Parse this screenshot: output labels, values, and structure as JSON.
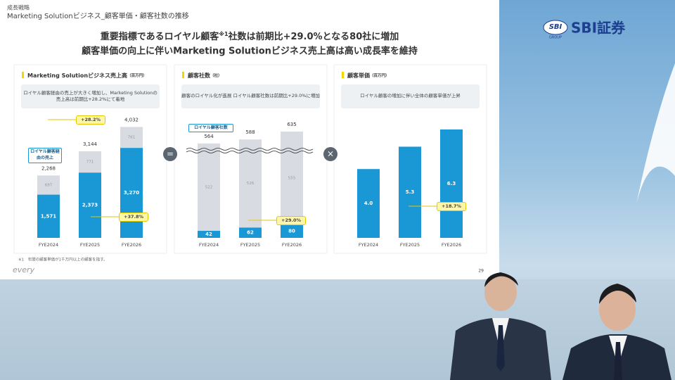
{
  "slide": {
    "section": "成長戦略",
    "subtitle": "Marketing Solutionビジネス_顧客単価・顧客社数の推移",
    "headline": [
      "重要指標であるロイヤル顧客",
      "※1",
      "社数は前期比+29.0%となる80社に増加"
    ],
    "headline2": "顧客単価の向上に伴いMarketing Solutionビジネス売上高は高い成長率を維持",
    "operators": [
      "=",
      "×"
    ],
    "footnote": "※1　年間の顧客単価が1千万円以上の顧客を指す。",
    "page": "29",
    "brand": "every"
  },
  "logo": {
    "mark": "SBI",
    "group": "GROUP",
    "name": "SBI証券"
  },
  "chart_data": [
    {
      "type": "bar",
      "title": "Marketing Solutionビジネス売上高",
      "unit": "（百万円）",
      "note": "ロイヤル顧客経由の売上が大きく増加し、Marketing Solutionの売上高は前期比+28.2%にて着地",
      "categories": [
        "FYE2024",
        "FYE2025",
        "FYE2026"
      ],
      "ylim": [
        0,
        4500
      ],
      "stacked": true,
      "series": [
        {
          "name": "ロイヤル顧客経由の売上",
          "color": "#1a98d5",
          "values": [
            1571,
            2373,
            3270
          ],
          "value_labels": [
            "1,571",
            "2,373",
            "3,270"
          ]
        },
        {
          "color": "#d8dce2",
          "values": [
            697,
            771,
            761
          ]
        }
      ],
      "totals": [
        2268,
        3144,
        4032
      ],
      "total_labels": [
        "2,268",
        "3,144",
        "4,032"
      ],
      "annotations": [
        "+28.2%",
        "+37.8%"
      ]
    },
    {
      "type": "bar",
      "title": "顧客社数",
      "unit": "（社）",
      "note": "顧客のロイヤル化が進展 ロイヤル顧客社数は前期比+29.0%に増加",
      "categories": [
        "FYE2024",
        "FYE2025",
        "FYE2026"
      ],
      "ylim": [
        0,
        740
      ],
      "stacked": true,
      "axis_break": true,
      "series": [
        {
          "name": "ロイヤル顧客社数",
          "color": "#1a98d5",
          "values": [
            42,
            62,
            80
          ]
        },
        {
          "color": "#d8dce2",
          "values": [
            522,
            526,
            555
          ]
        }
      ],
      "totals": [
        564,
        588,
        635
      ],
      "annotations": [
        "+29.0%"
      ]
    },
    {
      "type": "bar",
      "title": "顧客単価",
      "unit": "（百万円）",
      "note": "ロイヤル顧客の増加に伴い全体の顧客単価が上昇",
      "categories": [
        "FYE2024",
        "FYE2025",
        "FYE2026"
      ],
      "ylim": [
        0,
        7.2
      ],
      "series": [
        {
          "color": "#1a98d5",
          "values": [
            4.0,
            5.3,
            6.3
          ],
          "value_labels": [
            "4.0",
            "5.3",
            "6.3"
          ]
        }
      ],
      "annotations": [
        "+18.7%"
      ]
    }
  ]
}
